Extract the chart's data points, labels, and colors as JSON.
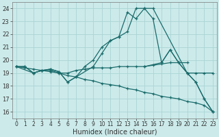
{
  "xlabel": "Humidex (Indice chaleur)",
  "background_color": "#cceaea",
  "grid_color": "#aad4d4",
  "line_color": "#1a6b6b",
  "xlim": [
    -0.5,
    23.5
  ],
  "ylim": [
    15.5,
    24.5
  ],
  "yticks": [
    16,
    17,
    18,
    19,
    20,
    21,
    22,
    23,
    24
  ],
  "xticks": [
    0,
    1,
    2,
    3,
    4,
    5,
    6,
    7,
    8,
    9,
    10,
    11,
    12,
    13,
    14,
    15,
    16,
    17,
    18,
    19,
    20,
    21,
    22,
    23
  ],
  "lines": [
    {
      "x": [
        0,
        1,
        2,
        3,
        4,
        5,
        6,
        7,
        8,
        9,
        10,
        11,
        12,
        13,
        14,
        15,
        16,
        20,
        21,
        22,
        23
      ],
      "y": [
        19.5,
        19.5,
        19.0,
        19.2,
        19.3,
        19.1,
        18.3,
        18.7,
        19.5,
        20.0,
        21.0,
        21.5,
        21.8,
        23.7,
        23.2,
        24.0,
        24.0,
        19.0,
        18.3,
        17.0,
        16.0
      ]
    },
    {
      "x": [
        0,
        2,
        3,
        4,
        5,
        6,
        7,
        9,
        10,
        11,
        12,
        13,
        14,
        15,
        16,
        17,
        18,
        19,
        20,
        21,
        22,
        23
      ],
      "y": [
        19.5,
        19.0,
        19.2,
        19.3,
        19.1,
        18.3,
        18.7,
        19.5,
        20.5,
        21.5,
        21.8,
        22.2,
        24.0,
        24.0,
        23.2,
        19.8,
        20.8,
        19.8,
        19.0,
        18.3,
        17.0,
        16.0
      ]
    },
    {
      "x": [
        0,
        1,
        2,
        3,
        4,
        5,
        6,
        7,
        8,
        9,
        10,
        11,
        12,
        13,
        14,
        15,
        16,
        17,
        18,
        19,
        20,
        21,
        22,
        23
      ],
      "y": [
        19.5,
        19.5,
        19.0,
        19.2,
        19.2,
        19.0,
        19.0,
        19.2,
        19.3,
        19.4,
        19.4,
        19.4,
        19.5,
        19.5,
        19.5,
        19.5,
        19.6,
        19.7,
        19.8,
        19.8,
        19.0,
        19.0,
        19.0,
        19.0
      ]
    },
    {
      "x": [
        0,
        1,
        2,
        3,
        4,
        5,
        6,
        7,
        8,
        9,
        10,
        11,
        12,
        13,
        14,
        15,
        16,
        17,
        18,
        19,
        20,
        21,
        22,
        23
      ],
      "y": [
        19.5,
        19.4,
        19.3,
        19.2,
        19.1,
        19.0,
        18.8,
        18.7,
        18.5,
        18.4,
        18.2,
        18.1,
        18.0,
        17.8,
        17.7,
        17.5,
        17.4,
        17.2,
        17.1,
        17.0,
        16.8,
        16.7,
        16.5,
        16.0
      ]
    },
    {
      "comment": "small triangle around x=17-19: 17~19.8, 18~20.8, 19~19.8",
      "x": [
        15,
        17,
        18,
        19,
        20
      ],
      "y": [
        19.5,
        19.8,
        20.8,
        19.8,
        19.8
      ]
    }
  ]
}
